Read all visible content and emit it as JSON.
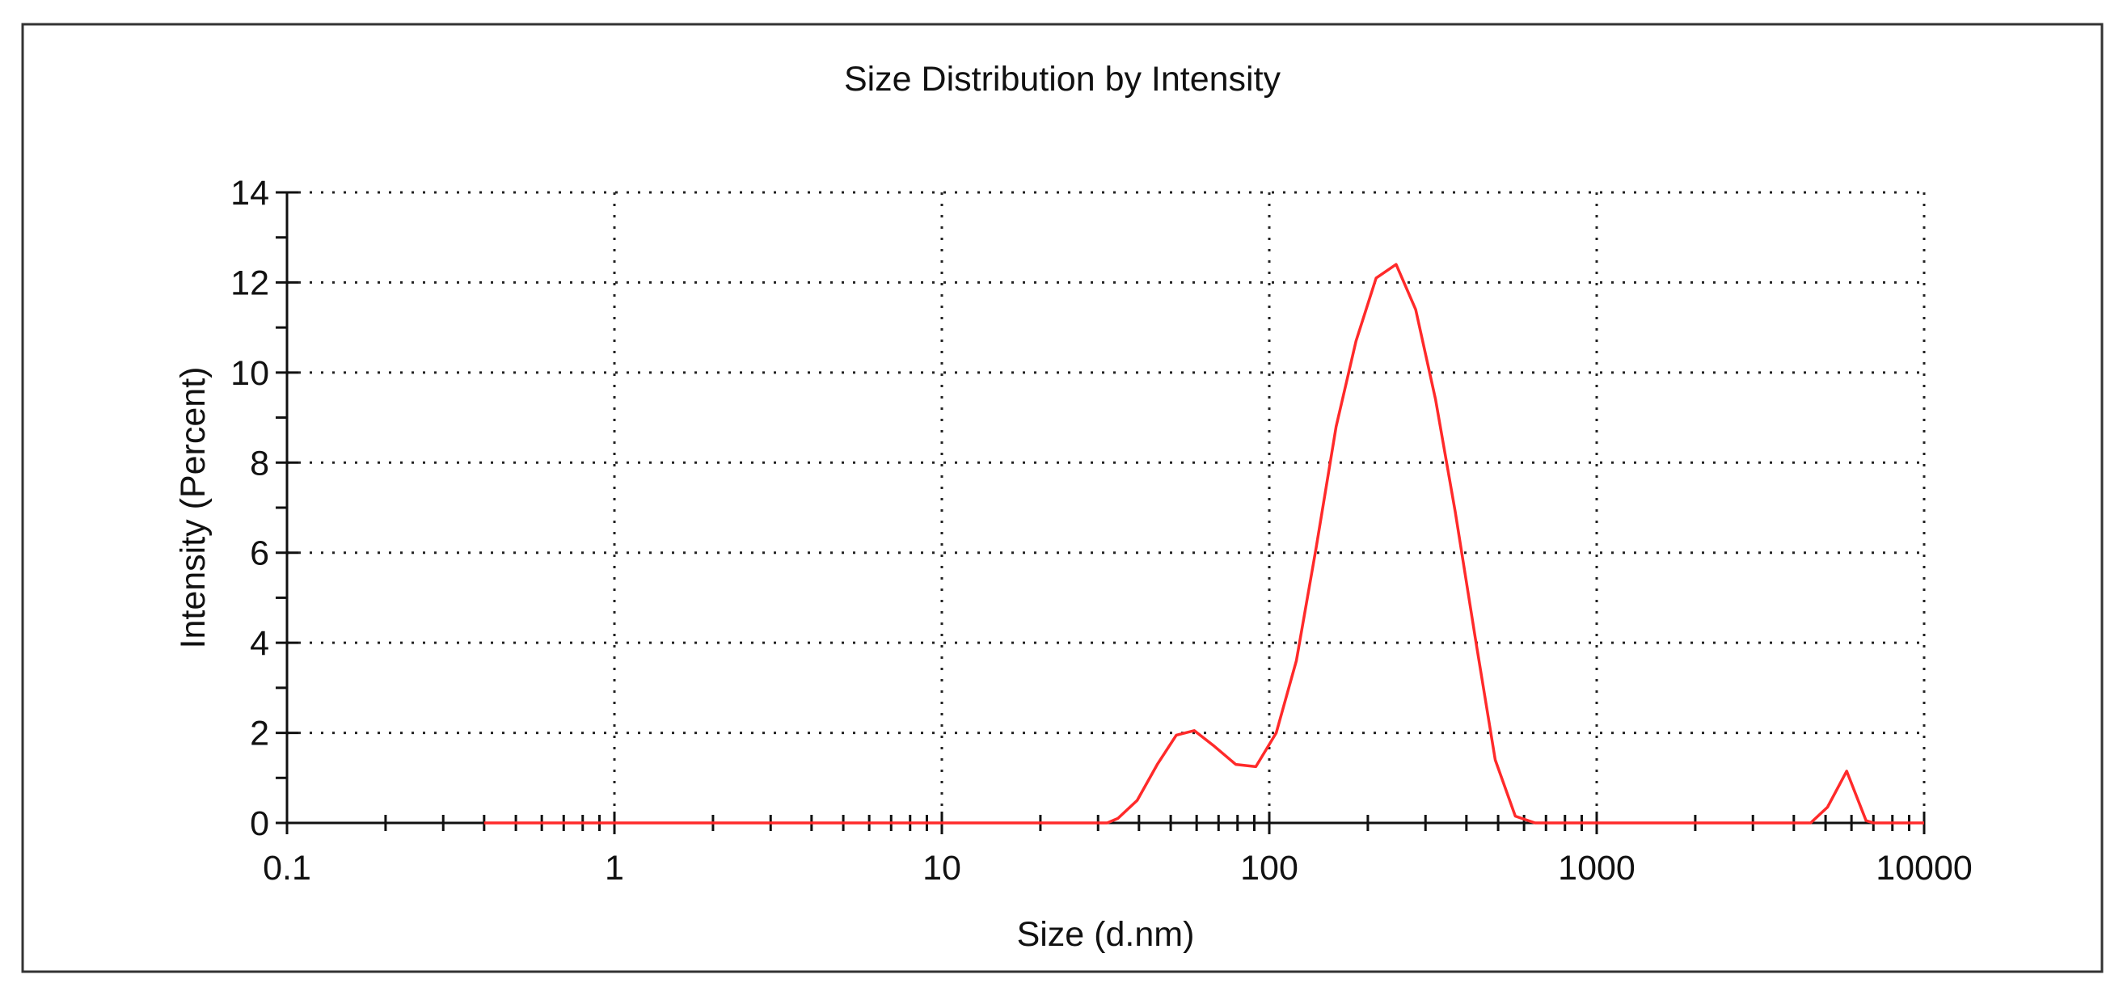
{
  "chart_data": {
    "type": "line",
    "title": "Size Distribution by Intensity",
    "xlabel": "Size (d.nm)",
    "ylabel": "Intensity (Percent)",
    "x_scale": "log",
    "xlim": [
      0.1,
      10000
    ],
    "ylim": [
      0,
      14
    ],
    "x_ticks": [
      0.1,
      1,
      10,
      100,
      1000,
      10000
    ],
    "x_tick_labels": [
      "0.1",
      "1",
      "10",
      "100",
      "1000",
      "10000"
    ],
    "y_ticks": [
      0,
      2,
      4,
      6,
      8,
      10,
      12,
      14
    ],
    "y_tick_labels": [
      "0",
      "2",
      "4",
      "6",
      "8",
      "10",
      "12",
      "14"
    ],
    "grid": true,
    "series": [
      {
        "color": "#ff2a2a",
        "x": [
          0.4,
          0.5,
          1,
          5,
          10,
          20,
          32,
          34.5,
          39.5,
          45.5,
          52,
          59,
          68,
          79,
          91,
          105,
          121,
          139,
          160,
          184,
          212,
          244,
          280,
          322,
          370,
          426,
          490,
          564,
          648,
          745,
          857,
          1000,
          2000,
          4000,
          4500,
          5070,
          5800,
          6650,
          7000,
          10000
        ],
        "values": [
          0,
          0,
          0,
          0,
          0,
          0,
          0,
          0.1,
          0.5,
          1.3,
          1.95,
          2.05,
          1.7,
          1.3,
          1.25,
          2.0,
          3.6,
          6.1,
          8.8,
          10.7,
          12.1,
          12.4,
          11.4,
          9.4,
          6.9,
          4.1,
          1.4,
          0.15,
          0,
          0,
          0,
          0,
          0,
          0,
          0,
          0.35,
          1.15,
          0.05,
          0,
          0
        ]
      }
    ]
  }
}
